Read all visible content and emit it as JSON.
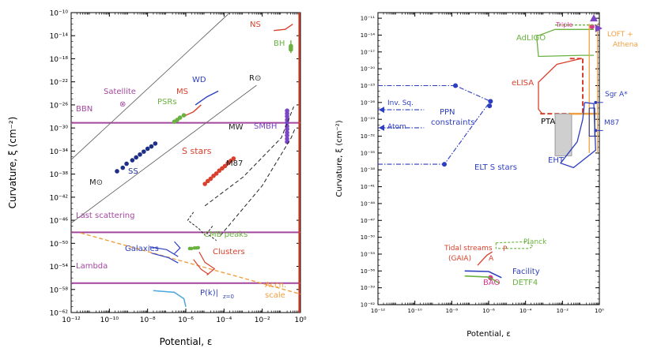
{
  "colors": {
    "magenta": "#a3479e",
    "black": "#222222",
    "grey": "#666666",
    "blue": "#2e3ec0",
    "navy": "#1d2f86",
    "red": "#d8412d",
    "green": "#6ab23f",
    "orange": "#f0a040",
    "cyan": "#4aa6df",
    "violet": "#7a45c6",
    "pink": "#d63a8a"
  },
  "chart_data": [
    {
      "type": "line",
      "panel": "left",
      "xlabel": "Potential, ε",
      "ylabel": "Curvature, ξ (cm⁻²)",
      "x_scale": "log",
      "y_scale": "log",
      "xlim": [
        1e-12,
        1
      ],
      "ylim": [
        1e-62,
        1e-10
      ],
      "x_ticks": [
        {
          "exp": -12,
          "label": "10⁻¹²"
        },
        {
          "exp": -10,
          "label": "10⁻¹⁰"
        },
        {
          "exp": -8,
          "label": "10⁻⁸"
        },
        {
          "exp": -6,
          "label": "10⁻⁶"
        },
        {
          "exp": -4,
          "label": "10⁻⁴"
        },
        {
          "exp": -2,
          "label": "10⁻²"
        },
        {
          "exp": 0,
          "label": "10⁰"
        }
      ],
      "y_ticks": [
        {
          "exp": -10,
          "label": "10⁻¹⁰"
        },
        {
          "exp": -14,
          "label": "10⁻¹⁴"
        },
        {
          "exp": -18,
          "label": "10⁻¹⁸"
        },
        {
          "exp": -22,
          "label": "10⁻²²"
        },
        {
          "exp": -26,
          "label": "10⁻²⁶"
        },
        {
          "exp": -30,
          "label": "10⁻³⁰"
        },
        {
          "exp": -34,
          "label": "10⁻³⁴"
        },
        {
          "exp": -38,
          "label": "10⁻³⁸"
        },
        {
          "exp": -42,
          "label": "10⁻⁴²"
        },
        {
          "exp": -46,
          "label": "10⁻⁴⁶"
        },
        {
          "exp": -50,
          "label": "10⁻⁵⁰"
        },
        {
          "exp": -54,
          "label": "10⁻⁵⁴"
        },
        {
          "exp": -58,
          "label": "10⁻⁵⁸"
        },
        {
          "exp": -62,
          "label": "10⁻⁶²"
        }
      ],
      "hlines": [
        {
          "name": "BBN",
          "y_exp": -29.1,
          "color": "magenta"
        },
        {
          "name": "Last scattering",
          "y_exp": -48.1,
          "color": "magenta"
        },
        {
          "name": "Lambda",
          "y_exp": -56.9,
          "color": "magenta"
        }
      ],
      "series": [
        {
          "label": "M⊙",
          "kind": "line",
          "color": "grey",
          "x_exp": [
            -12,
            -3.7
          ],
          "y_exp": [
            -35.5,
            -10
          ]
        },
        {
          "label": "R⊙",
          "kind": "line",
          "color": "grey",
          "x_exp": [
            -12,
            -2.3
          ],
          "y_exp": [
            -46.5,
            -22.6
          ]
        },
        {
          "label": "SS",
          "kind": "points",
          "color": "navy",
          "x_exp": [
            -9.6,
            -9.3,
            -9.1,
            -8.8,
            -8.6,
            -8.4,
            -8.2,
            -8.0,
            -7.8,
            -7.6
          ],
          "y_exp": [
            -37.5,
            -36.9,
            -36.2,
            -35.6,
            -35.1,
            -34.6,
            -34.1,
            -33.6,
            -33.2,
            -32.7
          ]
        },
        {
          "label": "S stars",
          "kind": "points",
          "color": "red",
          "x_exp": [
            -5.0,
            -4.85,
            -4.7,
            -4.55,
            -4.4,
            -4.25,
            -4.1,
            -3.95,
            -3.8,
            -3.65,
            -3.5
          ],
          "y_exp": [
            -39.7,
            -39.2,
            -38.8,
            -38.3,
            -37.9,
            -37.4,
            -37.0,
            -36.6,
            -36.1,
            -35.7,
            -35.3
          ]
        },
        {
          "label": "PSRs",
          "kind": "points",
          "color": "green",
          "x_exp": [
            -6.6,
            -6.45,
            -6.3,
            -6.1
          ],
          "y_exp": [
            -28.9,
            -28.6,
            -28.2,
            -27.8
          ]
        },
        {
          "label": "SMBH",
          "kind": "points",
          "color": "violet",
          "x_exp": [
            -0.7,
            -0.7,
            -0.7,
            -0.7,
            -0.7,
            -0.7,
            -0.7,
            -0.7,
            -0.7,
            -0.7,
            -0.7
          ],
          "y_exp": [
            -32.4,
            -31.9,
            -31.3,
            -30.8,
            -30.2,
            -29.7,
            -29.1,
            -28.6,
            -28.0,
            -27.5,
            -27.0
          ]
        },
        {
          "label": "BH",
          "kind": "points",
          "color": "green",
          "x_exp": [
            -0.5,
            -0.5,
            -0.5
          ],
          "y_exp": [
            -16.4,
            -16.1,
            -15.8
          ]
        },
        {
          "label": "MW",
          "kind": "dashed",
          "color": "black",
          "x_exp": [
            -5.0,
            -3.0,
            -1.0,
            -0.35
          ],
          "y_exp": [
            -43.5,
            -38.5,
            -31.7,
            -26.3
          ]
        },
        {
          "label": "M87",
          "kind": "dashed",
          "color": "black",
          "x_exp": [
            -4.2,
            -2.0,
            -0.5,
            -0.3
          ],
          "y_exp": [
            -48.7,
            -40.0,
            -31.8,
            -30.2
          ]
        },
        {
          "label": "Accn. scale",
          "kind": "dashed",
          "color": "orange",
          "x_exp": [
            -11.5,
            0
          ],
          "y_exp": [
            -48.2,
            -58.8
          ]
        }
      ],
      "vline": {
        "x_exp": 0,
        "color": "red"
      },
      "annotations": [
        "NS",
        "BH",
        "WD",
        "MS",
        "R⊙",
        "Satellite",
        "⊗",
        "PSRs",
        "BBN",
        "MW",
        "SMBH",
        "S stars",
        "M87",
        "SS",
        "M⊙",
        "Last scattering",
        "CMB peaks",
        "Galaxies",
        "Clusters",
        "Lambda",
        "Accn.",
        "scale",
        "P(k)|",
        "z=0"
      ]
    },
    {
      "type": "area",
      "panel": "right",
      "xlabel": "Potential, ε",
      "ylabel": "Curvature, ξ (cm⁻²)",
      "x_scale": "log",
      "y_scale": "log",
      "xlim": [
        1e-12,
        1
      ],
      "ylim": [
        1e-62,
        1e-10
      ],
      "x_ticks": [
        {
          "exp": -12,
          "label": "10⁻¹²"
        },
        {
          "exp": -10,
          "label": "10⁻¹⁰"
        },
        {
          "exp": -8,
          "label": "10⁻⁸"
        },
        {
          "exp": -6,
          "label": "10⁻⁶"
        },
        {
          "exp": -4,
          "label": "10⁻⁴"
        },
        {
          "exp": -2,
          "label": "10⁻²"
        },
        {
          "exp": 0,
          "label": "10⁰"
        }
      ],
      "y_ticks": [
        {
          "exp": -11,
          "label": "10⁻¹¹"
        },
        {
          "exp": -14,
          "label": "10⁻¹⁴"
        },
        {
          "exp": -17,
          "label": "10⁻¹⁷"
        },
        {
          "exp": -20,
          "label": "10⁻²⁰"
        },
        {
          "exp": -23,
          "label": "10⁻²³"
        },
        {
          "exp": -26,
          "label": "10⁻²⁶"
        },
        {
          "exp": -29,
          "label": "10⁻²⁹"
        },
        {
          "exp": -32,
          "label": "10⁻³²"
        },
        {
          "exp": -35,
          "label": "10⁻³⁵"
        },
        {
          "exp": -38,
          "label": "10⁻³⁸"
        },
        {
          "exp": -41,
          "label": "10⁻⁴¹"
        },
        {
          "exp": -44,
          "label": "10⁻⁴⁴"
        },
        {
          "exp": -47,
          "label": "10⁻⁴⁷"
        },
        {
          "exp": -50,
          "label": "10⁻⁵⁰"
        },
        {
          "exp": -53,
          "label": "10⁻⁵³"
        },
        {
          "exp": -56,
          "label": "10⁻⁵⁶"
        },
        {
          "exp": -59,
          "label": "10⁻⁵⁹"
        },
        {
          "exp": -62,
          "label": "10⁻⁶²"
        }
      ],
      "series": [
        {
          "label": "PPN constraints",
          "kind": "dashdot",
          "color": "blue",
          "x_exp": [
            -12,
            -7.8,
            -5.9
          ],
          "y_exp": [
            -23.0,
            -23.0,
            -25.8
          ]
        },
        {
          "label": "PPN constraints",
          "kind": "dashdot",
          "color": "blue",
          "x_exp": [
            -12,
            -8.4,
            -6.3,
            -5.9
          ],
          "y_exp": [
            -37.0,
            -37.0,
            -27.5,
            -25.8
          ]
        },
        {
          "label": "Inv. Sq.",
          "kind": "dashdot",
          "color": "blue",
          "x_exp": [
            -12,
            -9.5
          ],
          "y_exp": [
            -27.3,
            -27.3
          ]
        },
        {
          "label": "Atom",
          "kind": "dashdot",
          "color": "blue",
          "x_exp": [
            -12,
            -9.5
          ],
          "y_exp": [
            -30.5,
            -30.5
          ]
        },
        {
          "label": "eLISA",
          "kind": "dashed",
          "color": "red",
          "x_exp": [
            -3.2,
            -1.0
          ],
          "y_exp": [
            -28.0,
            -28.0
          ]
        },
        {
          "label": "Triple",
          "kind": "points",
          "color": "pink",
          "x_exp": [
            -0.4
          ],
          "y_exp": [
            -12.5
          ]
        },
        {
          "label": "BAO",
          "kind": "points",
          "color": "pink",
          "x_exp": [
            -5.9
          ],
          "y_exp": [
            -57.2
          ]
        }
      ],
      "regions": [
        "AdLIGO",
        "LOFT + Athena",
        "eLISA",
        "PTA",
        "EHT",
        "Sgr A*",
        "M87",
        "ELT S stars",
        "Planck",
        "Tidal streams (GAIA)",
        "A",
        "P",
        "Facility",
        "DETF4",
        "BAO",
        "Triple"
      ],
      "annotations": [
        "Triple",
        "AdLIGO",
        "LOFT +",
        "Athena",
        "eLISA",
        "Sgr A*",
        "Inv. Sq.",
        "PPN",
        "constraints",
        "Atom",
        "PTA",
        "M87",
        "ELT S stars",
        "EHT",
        "Planck",
        "Tidal streams",
        "(GAIA)",
        "A",
        "P",
        "Facility",
        "BAO",
        "DETF4"
      ]
    }
  ]
}
